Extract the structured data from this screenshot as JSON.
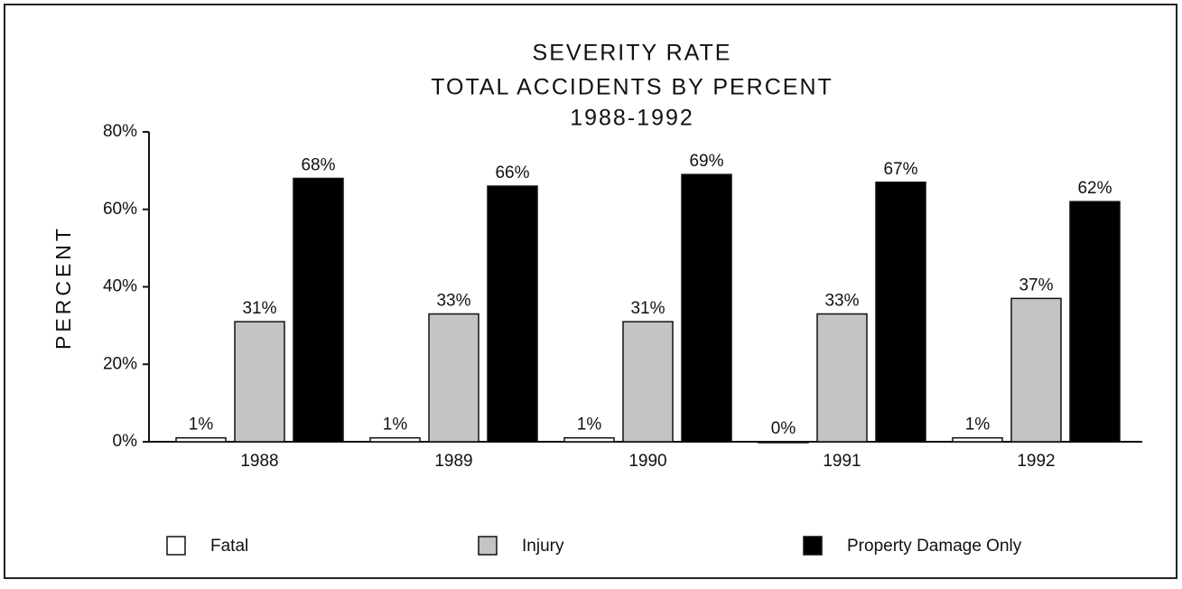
{
  "chart_data": {
    "type": "bar",
    "title": [
      "SEVERITY RATE",
      "TOTAL ACCIDENTS BY PERCENT",
      "1988-1992"
    ],
    "y_label": "PERCENT",
    "categories": [
      "1988",
      "1989",
      "1990",
      "1991",
      "1992"
    ],
    "series": [
      {
        "name": "Fatal",
        "color": "#ffffff",
        "values": [
          1,
          1,
          1,
          0,
          1
        ],
        "value_labels": [
          "1%",
          "1%",
          "1%",
          "0%",
          "1%"
        ]
      },
      {
        "name": "Injury",
        "color": "#c4c4c4",
        "values": [
          31,
          33,
          31,
          33,
          37
        ],
        "value_labels": [
          "31%",
          "33%",
          "31%",
          "33%",
          "37%"
        ]
      },
      {
        "name": "Property Damage Only",
        "color": "#000000",
        "values": [
          68,
          66,
          69,
          67,
          62
        ],
        "value_labels": [
          "68%",
          "66%",
          "69%",
          "67%",
          "62%"
        ]
      }
    ],
    "ylim": [
      0,
      80
    ],
    "yticks": [
      {
        "value": 0,
        "label": "0%"
      },
      {
        "value": 20,
        "label": "20%"
      },
      {
        "value": 40,
        "label": "40%"
      },
      {
        "value": 60,
        "label": "60%"
      },
      {
        "value": 80,
        "label": "80%"
      }
    ],
    "grid": false,
    "legend": "bottom"
  }
}
